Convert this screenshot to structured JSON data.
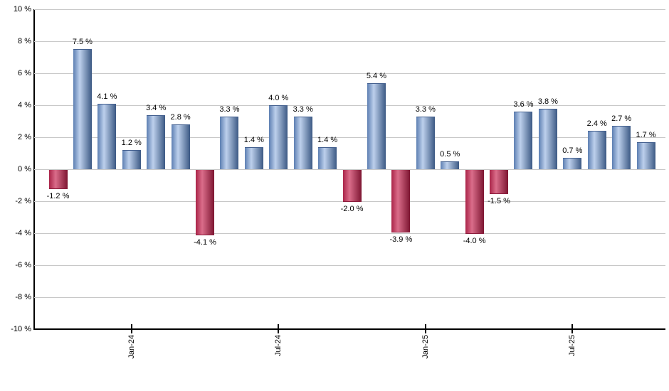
{
  "chart_data": {
    "type": "bar",
    "title": "",
    "xlabel": "",
    "ylabel": "",
    "values": [
      -1.2,
      7.5,
      4.1,
      1.2,
      3.4,
      2.8,
      -4.1,
      3.3,
      1.4,
      4.0,
      3.3,
      1.4,
      -2.0,
      5.4,
      -3.9,
      3.3,
      0.5,
      -4.0,
      -1.5,
      3.6,
      3.8,
      0.7,
      2.4,
      2.7,
      1.7
    ],
    "value_labels": [
      "-1.2 %",
      "7.5 %",
      "4.1 %",
      "1.2 %",
      "3.4 %",
      "2.8 %",
      "-4.1 %",
      "3.3 %",
      "1.4 %",
      "4.0 %",
      "3.3 %",
      "1.4 %",
      "-2.0 %",
      "5.4 %",
      "-3.9 %",
      "3.3 %",
      "0.5 %",
      "-4.0 %",
      "-1.5 %",
      "3.6 %",
      "3.8 %",
      "0.7 %",
      "2.4 %",
      "2.7 %",
      "1.7 %"
    ],
    "x_ticks": [
      {
        "index": 3,
        "label": "Jan-24"
      },
      {
        "index": 9,
        "label": "Jul-24"
      },
      {
        "index": 15,
        "label": "Jan-25"
      },
      {
        "index": 21,
        "label": "Jul-25"
      }
    ],
    "y_ticks": [
      "10 %",
      "8 %",
      "6 %",
      "4 %",
      "2 %",
      "0 %",
      "-2 %",
      "-4 %",
      "-6 %",
      "-8 %",
      "-10 %"
    ],
    "y_axis": {
      "min": -10,
      "max": 10,
      "step": 2
    },
    "grid": "horizontal",
    "legend_position": "none",
    "colors": {
      "positive_bar_left": "#5d7fb2",
      "positive_bar_light": "#bdd0ec",
      "positive_bar_right": "#3c5984",
      "positive_bar_cap": "#44608f",
      "negative_bar_left": "#aa2448",
      "negative_bar_light": "#da6d8a",
      "negative_bar_right": "#7d1531",
      "negative_bar_cap": "#8c1d3d",
      "gridline": "#c8c8c8",
      "axis": "#000000",
      "label_text": "#000000"
    }
  }
}
